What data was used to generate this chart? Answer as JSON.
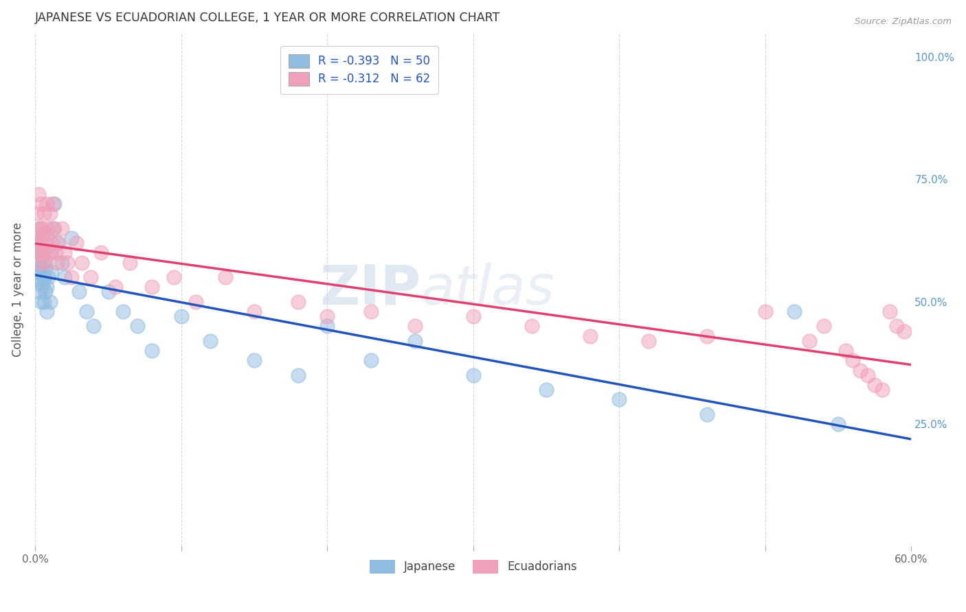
{
  "title": "JAPANESE VS ECUADORIAN COLLEGE, 1 YEAR OR MORE CORRELATION CHART",
  "source": "Source: ZipAtlas.com",
  "ylabel": "College, 1 year or more",
  "xlim": [
    0.0,
    0.6
  ],
  "ylim": [
    0.0,
    1.05
  ],
  "xticks": [
    0.0,
    0.1,
    0.2,
    0.3,
    0.4,
    0.5,
    0.6
  ],
  "xticklabels": [
    "0.0%",
    "",
    "",
    "",
    "",
    "",
    "60.0%"
  ],
  "yticks_right": [
    0.0,
    0.25,
    0.5,
    0.75,
    1.0
  ],
  "yticklabels_right": [
    "",
    "25.0%",
    "50.0%",
    "75.0%",
    "100.0%"
  ],
  "background_color": "#ffffff",
  "grid_color": "#cccccc",
  "legend_label1": "Japanese",
  "legend_label2": "Ecuadorians",
  "blue_color": "#90bce0",
  "pink_color": "#f0a0b8",
  "blue_line_color": "#2255bb",
  "pink_line_color": "#e04070",
  "watermark_zip": "ZIP",
  "watermark_atlas": "atlas",
  "title_color": "#333333",
  "source_color": "#999999",
  "right_axis_color": "#5599cc",
  "japanese_x": [
    0.001,
    0.001,
    0.002,
    0.002,
    0.002,
    0.003,
    0.003,
    0.003,
    0.004,
    0.004,
    0.004,
    0.005,
    0.005,
    0.005,
    0.006,
    0.006,
    0.007,
    0.007,
    0.008,
    0.008,
    0.009,
    0.01,
    0.01,
    0.011,
    0.012,
    0.013,
    0.015,
    0.018,
    0.02,
    0.025,
    0.03,
    0.035,
    0.04,
    0.05,
    0.06,
    0.07,
    0.08,
    0.1,
    0.12,
    0.15,
    0.18,
    0.2,
    0.23,
    0.26,
    0.3,
    0.35,
    0.4,
    0.46,
    0.52,
    0.55
  ],
  "japanese_y": [
    0.56,
    0.62,
    0.55,
    0.6,
    0.58,
    0.52,
    0.65,
    0.57,
    0.5,
    0.54,
    0.6,
    0.53,
    0.58,
    0.63,
    0.5,
    0.55,
    0.52,
    0.57,
    0.48,
    0.53,
    0.55,
    0.6,
    0.5,
    0.56,
    0.65,
    0.7,
    0.62,
    0.58,
    0.55,
    0.63,
    0.52,
    0.48,
    0.45,
    0.52,
    0.48,
    0.45,
    0.4,
    0.47,
    0.42,
    0.38,
    0.35,
    0.45,
    0.38,
    0.42,
    0.35,
    0.32,
    0.3,
    0.27,
    0.48,
    0.25
  ],
  "ecuadorian_x": [
    0.001,
    0.001,
    0.002,
    0.002,
    0.002,
    0.003,
    0.003,
    0.004,
    0.004,
    0.005,
    0.005,
    0.006,
    0.006,
    0.007,
    0.007,
    0.008,
    0.008,
    0.009,
    0.01,
    0.01,
    0.011,
    0.012,
    0.013,
    0.014,
    0.015,
    0.016,
    0.018,
    0.02,
    0.022,
    0.025,
    0.028,
    0.032,
    0.038,
    0.045,
    0.055,
    0.065,
    0.08,
    0.095,
    0.11,
    0.13,
    0.15,
    0.18,
    0.2,
    0.23,
    0.26,
    0.3,
    0.34,
    0.38,
    0.42,
    0.46,
    0.5,
    0.53,
    0.54,
    0.555,
    0.56,
    0.565,
    0.57,
    0.575,
    0.58,
    0.585,
    0.59,
    0.595
  ],
  "ecuadorian_y": [
    0.62,
    0.68,
    0.6,
    0.64,
    0.72,
    0.58,
    0.65,
    0.62,
    0.7,
    0.6,
    0.65,
    0.6,
    0.68,
    0.62,
    0.58,
    0.64,
    0.7,
    0.65,
    0.6,
    0.68,
    0.62,
    0.7,
    0.65,
    0.6,
    0.58,
    0.62,
    0.65,
    0.6,
    0.58,
    0.55,
    0.62,
    0.58,
    0.55,
    0.6,
    0.53,
    0.58,
    0.53,
    0.55,
    0.5,
    0.55,
    0.48,
    0.5,
    0.47,
    0.48,
    0.45,
    0.47,
    0.45,
    0.43,
    0.42,
    0.43,
    0.48,
    0.42,
    0.45,
    0.4,
    0.38,
    0.36,
    0.35,
    0.33,
    0.32,
    0.48,
    0.45,
    0.44
  ]
}
